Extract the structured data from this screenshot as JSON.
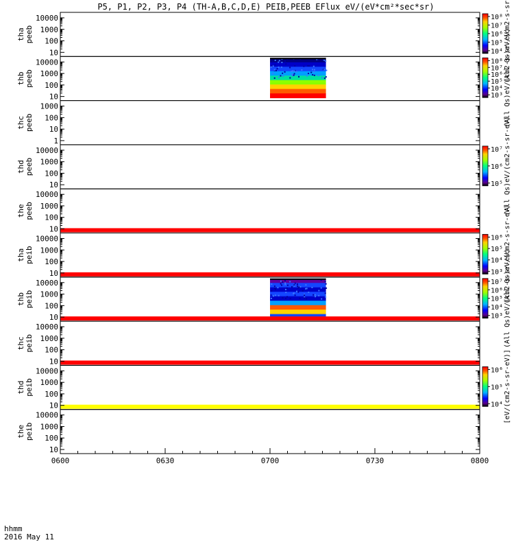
{
  "title": "P5, P1, P2, P3, P4 (TH-A,B,C,D,E) PEIB,PEEB EFlux eV/(eV*cm²*sec*sr)",
  "footer": {
    "axis_name": "hhmm",
    "date": "2016 May 11"
  },
  "chart_data": {
    "type": "heatmap",
    "x": {
      "ticks": [
        "0600",
        "0630",
        "0700",
        "0730",
        "0800"
      ],
      "range": [
        "06:00",
        "08:00"
      ]
    },
    "panels": [
      {
        "probe": "tha",
        "species": "peeb",
        "yticks": [
          "10",
          "100",
          "1000",
          "10000"
        ],
        "log": true,
        "colorbar": {
          "ticks": [
            "10⁴",
            "10⁵",
            "10⁶",
            "10⁷",
            "10⁸"
          ],
          "label": "(All Qs)eV/(cm2-s-sr-eV)"
        }
      },
      {
        "probe": "thb",
        "species": "peeb",
        "yticks": [
          "10",
          "100",
          "1000",
          "10000"
        ],
        "log": true,
        "data_block": {
          "start": "07:00",
          "end": "07:16",
          "colors": [
            "#ff0000",
            "#ff5a00",
            "#ffd200",
            "#8cff00",
            "#00e0a0",
            "#00a0ff",
            "#1446ff",
            "#0000c8",
            "#000080"
          ]
        },
        "colorbar": {
          "ticks": [
            "10³",
            "10⁴",
            "10⁵",
            "10⁶",
            "10⁷",
            "10⁸"
          ],
          "label": "(All Qs)eV/(cm2-s-sr-eV)"
        }
      },
      {
        "probe": "thc",
        "species": "peeb",
        "yticks": [
          "1",
          "10",
          "100",
          "1000"
        ],
        "log": true,
        "colorbar": null
      },
      {
        "probe": "thd",
        "species": "peeb",
        "yticks": [
          "10",
          "100",
          "1000",
          "10000"
        ],
        "log": true,
        "colorbar": {
          "ticks": [
            "10⁵",
            "10⁶",
            "10⁷"
          ],
          "label": "(All Qs)eV/(cm2-s-sr-eV)"
        }
      },
      {
        "probe": "the",
        "species": "peeb",
        "yticks": [
          "10",
          "100",
          "1000",
          "10000"
        ],
        "log": true,
        "bottom_band": "#ff0000",
        "colorbar": null
      },
      {
        "probe": "tha",
        "species": "peib",
        "yticks": [
          "10",
          "100",
          "1000",
          "10000"
        ],
        "log": true,
        "bottom_band": "#ff0000",
        "colorbar": {
          "ticks": [
            "10³",
            "10⁴",
            "10⁵",
            "10⁶"
          ],
          "label": "(All Qs)eV/(cm2-s-sr-eV)"
        }
      },
      {
        "probe": "thb",
        "species": "peib",
        "yticks": [
          "10",
          "100",
          "1000",
          "10000"
        ],
        "log": true,
        "bottom_band": "#ff0000",
        "data_block": {
          "start": "07:00",
          "end": "07:16",
          "colors": [
            "#1446ff",
            "#ffd200",
            "#ff5a00",
            "#00a0ff",
            "#0000c8",
            "#1446ff",
            "#0000c8",
            "#1446ff",
            "#6000a0"
          ]
        },
        "colorbar": {
          "ticks": [
            "10³",
            "10⁴",
            "10⁵",
            "10⁶",
            "10⁷"
          ],
          "label": "(All Qs)eV/(cm2-s-sr-eV)"
        }
      },
      {
        "probe": "thc",
        "species": "peib",
        "yticks": [
          "10",
          "100",
          "1000",
          "10000"
        ],
        "log": true,
        "bottom_band": "#ff0000",
        "colorbar": null
      },
      {
        "probe": "thd",
        "species": "peib",
        "yticks": [
          "10",
          "100",
          "1000",
          "10000"
        ],
        "log": true,
        "bottom_band": "#ffff00",
        "colorbar": {
          "ticks": [
            "10⁴",
            "10⁵",
            "10⁶"
          ],
          "label": "[eV/(cm2-s-sr-eV)]"
        }
      },
      {
        "probe": "the",
        "species": "peib",
        "yticks": [
          "10",
          "100",
          "1000",
          "10000"
        ],
        "log": true,
        "colorbar": null
      }
    ]
  }
}
